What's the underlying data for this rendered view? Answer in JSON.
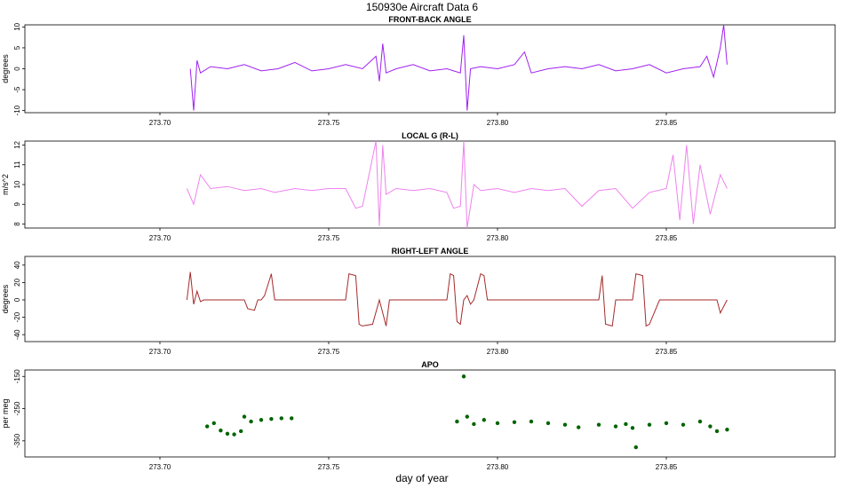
{
  "title": "150930e   Aircraft Data 6",
  "xlabel": "day of year",
  "chart_data": [
    {
      "type": "line",
      "title": "FRONT-BACK ANGLE",
      "ylabel": "degrees",
      "xlim": [
        273.66,
        273.9
      ],
      "ylim": [
        -10.5,
        10.5
      ],
      "xticks": [
        "273.70",
        "273.75",
        "273.80",
        "273.85"
      ],
      "yticks": [
        -10,
        -5,
        0,
        5,
        10
      ],
      "color": "#a020f0",
      "series": [
        {
          "x": [
            273.709,
            273.71,
            273.711,
            273.712,
            273.715,
            273.72,
            273.725,
            273.73,
            273.735,
            273.74,
            273.745,
            273.75,
            273.755,
            273.76,
            273.764,
            273.765,
            273.766,
            273.767,
            273.77,
            273.775,
            273.78,
            273.785,
            273.789,
            273.79,
            273.791,
            273.792,
            273.795,
            273.8,
            273.805,
            273.808,
            273.81,
            273.815,
            273.82,
            273.825,
            273.83,
            273.835,
            273.84,
            273.845,
            273.85,
            273.855,
            273.86,
            273.862,
            273.864,
            273.866,
            273.867,
            273.868
          ],
          "y": [
            0,
            -10,
            2,
            -1,
            0.5,
            0,
            1,
            -0.5,
            0,
            1.5,
            -0.5,
            0,
            1,
            0,
            3,
            -3,
            6,
            -1,
            0,
            1,
            -0.5,
            0,
            -1,
            8,
            -10,
            0,
            0.5,
            0,
            1,
            4,
            -1,
            0,
            0.5,
            0,
            1,
            -0.5,
            0,
            1,
            -1,
            0,
            0.5,
            3,
            -2,
            5,
            10.5,
            1
          ]
        }
      ]
    },
    {
      "type": "line",
      "title": "LOCAL G (R-L)",
      "ylabel": "m/s^2",
      "xlim": [
        273.66,
        273.9
      ],
      "ylim": [
        7.8,
        12.2
      ],
      "xticks": [
        "273.70",
        "273.75",
        "273.80",
        "273.85"
      ],
      "yticks": [
        8,
        9,
        10,
        11,
        12
      ],
      "color": "#ee82ee",
      "series": [
        {
          "x": [
            273.708,
            273.71,
            273.712,
            273.715,
            273.72,
            273.725,
            273.73,
            273.734,
            273.74,
            273.745,
            273.75,
            273.755,
            273.758,
            273.76,
            273.764,
            273.765,
            273.766,
            273.767,
            273.77,
            273.775,
            273.78,
            273.785,
            273.787,
            273.789,
            273.79,
            273.791,
            273.793,
            273.795,
            273.8,
            273.805,
            273.81,
            273.815,
            273.82,
            273.825,
            273.83,
            273.835,
            273.84,
            273.845,
            273.85,
            273.852,
            273.854,
            273.856,
            273.858,
            273.86,
            273.863,
            273.866,
            273.868
          ],
          "y": [
            9.8,
            9.0,
            10.5,
            9.8,
            9.9,
            9.7,
            9.8,
            9.6,
            9.8,
            9.7,
            9.8,
            9.8,
            8.8,
            8.9,
            12.2,
            7.9,
            12.0,
            9.5,
            9.8,
            9.7,
            9.8,
            9.6,
            8.8,
            8.9,
            12.2,
            7.8,
            10.0,
            9.7,
            9.8,
            9.6,
            9.8,
            9.7,
            9.8,
            8.9,
            9.7,
            9.8,
            8.8,
            9.6,
            9.8,
            11.5,
            8.2,
            12.0,
            8.0,
            11.0,
            8.5,
            10.5,
            9.8
          ]
        }
      ]
    },
    {
      "type": "line",
      "title": "RIGHT-LEFT ANGLE",
      "ylabel": "degrees",
      "xlim": [
        273.66,
        273.9
      ],
      "ylim": [
        -48,
        50
      ],
      "xticks": [
        "273.70",
        "273.75",
        "273.80",
        "273.85"
      ],
      "yticks": [
        -40,
        -20,
        0,
        20,
        40
      ],
      "color": "#a52a2a",
      "series": [
        {
          "x": [
            273.708,
            273.709,
            273.71,
            273.711,
            273.712,
            273.713,
            273.715,
            273.72,
            273.725,
            273.726,
            273.728,
            273.729,
            273.73,
            273.731,
            273.733,
            273.734,
            273.735,
            273.74,
            273.75,
            273.755,
            273.756,
            273.758,
            273.759,
            273.76,
            273.763,
            273.765,
            273.767,
            273.768,
            273.77,
            273.78,
            273.785,
            273.786,
            273.787,
            273.788,
            273.789,
            273.79,
            273.791,
            273.792,
            273.793,
            273.795,
            273.796,
            273.797,
            273.8,
            273.81,
            273.815,
            273.82,
            273.825,
            273.83,
            273.831,
            273.832,
            273.834,
            273.835,
            273.84,
            273.841,
            273.843,
            273.844,
            273.845,
            273.848,
            273.85,
            273.855,
            273.86,
            273.865,
            273.866,
            273.868
          ],
          "y": [
            0,
            32,
            -5,
            10,
            -2,
            0,
            0,
            0,
            0,
            -10,
            -12,
            0,
            0,
            5,
            30,
            0,
            0,
            0,
            0,
            0,
            30,
            28,
            -28,
            -30,
            -28,
            0,
            -30,
            0,
            0,
            0,
            0,
            30,
            28,
            -25,
            -28,
            0,
            5,
            -5,
            0,
            30,
            28,
            0,
            0,
            0,
            0,
            0,
            0,
            0,
            28,
            -28,
            -30,
            0,
            0,
            30,
            28,
            -30,
            -28,
            0,
            0,
            0,
            0,
            0,
            -15,
            0
          ]
        }
      ]
    },
    {
      "type": "scatter",
      "title": "APO",
      "ylabel": "per meg",
      "xlim": [
        273.66,
        273.9
      ],
      "ylim": [
        -400,
        -130
      ],
      "xticks": [
        "273.70",
        "273.75",
        "273.80",
        "273.85"
      ],
      "yticks": [
        -150,
        -250,
        -350
      ],
      "color": "#006400",
      "series": [
        {
          "x": [
            273.714,
            273.716,
            273.718,
            273.72,
            273.722,
            273.724,
            273.725,
            273.727,
            273.73,
            273.733,
            273.736,
            273.739,
            273.788,
            273.79,
            273.791,
            273.793,
            273.796,
            273.8,
            273.805,
            273.81,
            273.815,
            273.82,
            273.824,
            273.83,
            273.835,
            273.838,
            273.84,
            273.841,
            273.845,
            273.85,
            273.855,
            273.86,
            273.863,
            273.865,
            273.868
          ],
          "y": [
            -305,
            -295,
            -318,
            -328,
            -330,
            -320,
            -275,
            -290,
            -285,
            -282,
            -280,
            -280,
            -290,
            -150,
            -275,
            -298,
            -285,
            -295,
            -292,
            -290,
            -295,
            -300,
            -308,
            -300,
            -305,
            -298,
            -310,
            -370,
            -300,
            -295,
            -300,
            -290,
            -305,
            -320,
            -315
          ]
        }
      ]
    }
  ]
}
